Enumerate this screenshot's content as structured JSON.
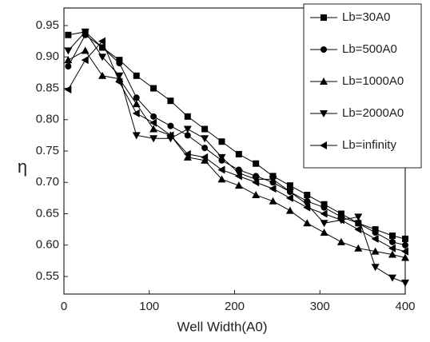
{
  "chart_data": {
    "type": "line",
    "xlabel": "Well Width(A0)",
    "ylabel": "η",
    "x": [
      5,
      25,
      45,
      65,
      85,
      105,
      125,
      145,
      165,
      185,
      205,
      225,
      245,
      265,
      285,
      305,
      325,
      345,
      365,
      385,
      400
    ],
    "series": [
      {
        "name": "Lb=30A0",
        "color": "#000000",
        "marker": "square",
        "values": [
          0.935,
          0.94,
          0.915,
          0.895,
          0.87,
          0.85,
          0.83,
          0.805,
          0.785,
          0.765,
          0.745,
          0.73,
          0.71,
          0.695,
          0.68,
          0.665,
          0.65,
          0.635,
          0.625,
          0.615,
          0.61
        ]
      },
      {
        "name": "Lb=500A0",
        "color": "#000000",
        "marker": "circle",
        "values": [
          0.885,
          0.935,
          0.915,
          0.89,
          0.835,
          0.805,
          0.79,
          0.775,
          0.755,
          0.735,
          0.72,
          0.71,
          0.7,
          0.685,
          0.67,
          0.66,
          0.645,
          0.635,
          0.62,
          0.605,
          0.6
        ]
      },
      {
        "name": "Lb=1000A0",
        "color": "#000000",
        "marker": "triangle-up",
        "values": [
          0.895,
          0.91,
          0.87,
          0.865,
          0.825,
          0.785,
          0.775,
          0.74,
          0.735,
          0.705,
          0.695,
          0.68,
          0.67,
          0.655,
          0.635,
          0.62,
          0.605,
          0.595,
          0.59,
          0.585,
          0.58
        ]
      },
      {
        "name": "Lb=2000A0",
        "color": "#000000",
        "marker": "triangle-down",
        "values": [
          0.91,
          0.94,
          0.9,
          0.87,
          0.775,
          0.77,
          0.77,
          0.785,
          0.77,
          0.74,
          0.715,
          0.705,
          0.705,
          0.685,
          0.665,
          0.635,
          0.64,
          0.645,
          0.565,
          0.548,
          0.54
        ]
      },
      {
        "name": "Lb=infinity",
        "color": "#000000",
        "marker": "triangle-left",
        "values": [
          0.848,
          0.895,
          0.925,
          0.86,
          0.81,
          0.795,
          0.775,
          0.745,
          0.74,
          0.72,
          0.71,
          0.7,
          0.69,
          0.675,
          0.66,
          0.65,
          0.64,
          0.625,
          0.61,
          0.595,
          0.59
        ]
      }
    ],
    "xlim": [
      0,
      400
    ],
    "xticks": [
      0,
      100,
      200,
      300,
      400
    ],
    "ylim": [
      0.522,
      0.978
    ],
    "yticks": [
      0.55,
      {
        "value": 0.6,
        "label": "0.60"
      },
      0.65,
      {
        "value": 0.7,
        "label": "0.70"
      },
      0.75,
      {
        "value": 0.8,
        "label": "0.80"
      },
      0.85,
      {
        "value": 0.9,
        "label": "0.90"
      },
      0.95
    ],
    "legend": "upper right"
  }
}
